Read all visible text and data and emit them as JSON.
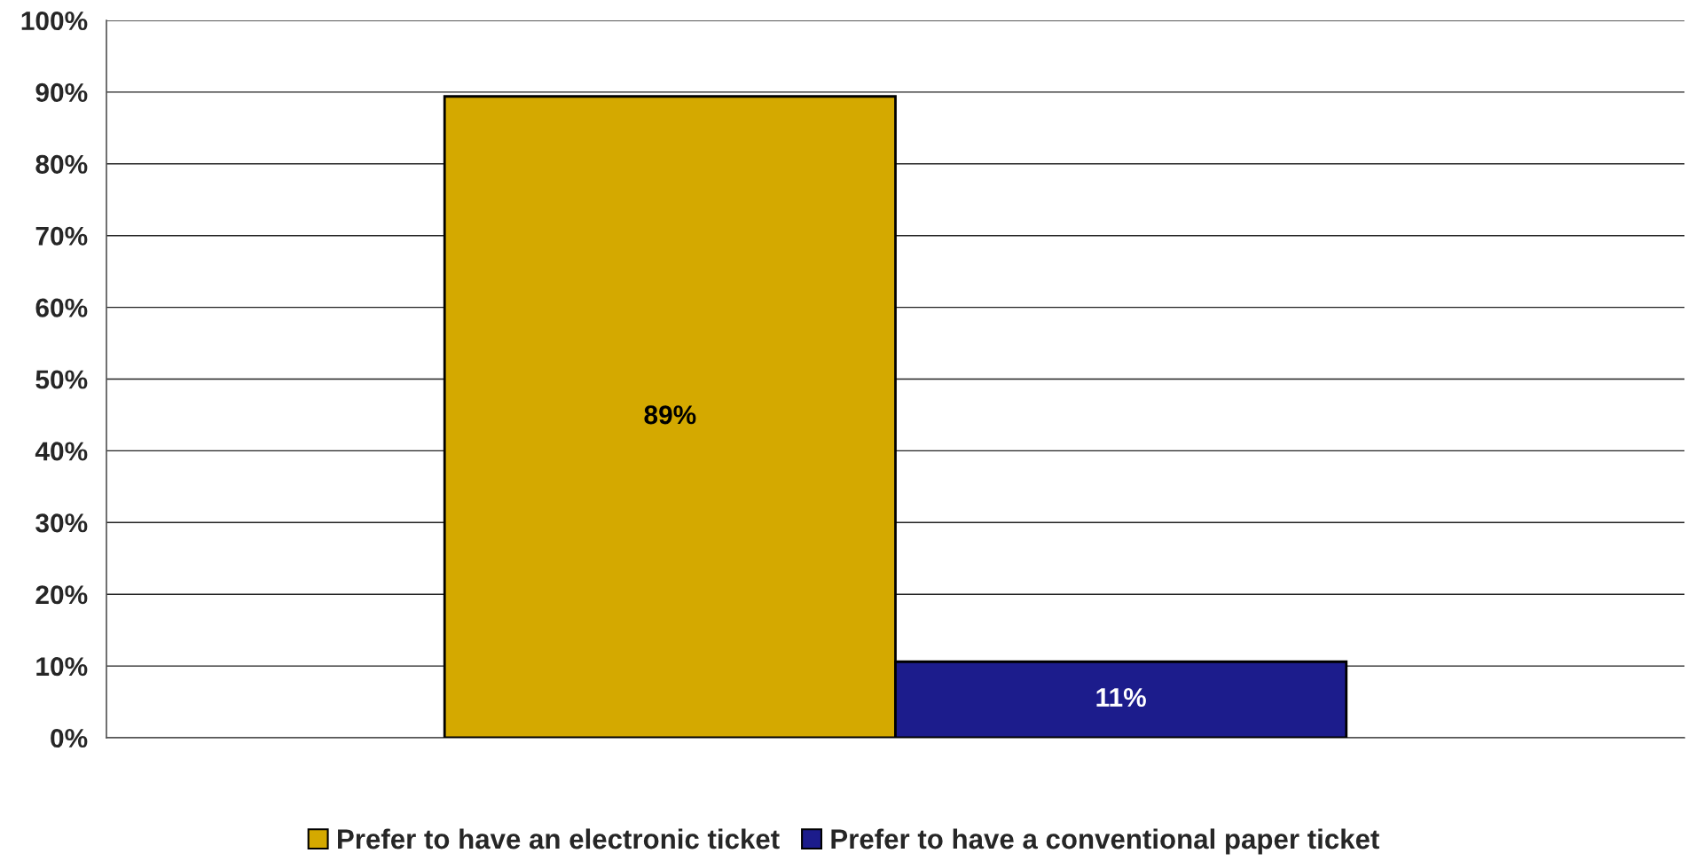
{
  "chart_data": {
    "type": "bar",
    "categories": [
      null
    ],
    "series": [
      {
        "name": "Prefer to have an electronic ticket",
        "color": "#d4a900",
        "values": [
          89.4
        ],
        "value_labels": [
          "89%"
        ]
      },
      {
        "name": "Prefer to have a conventional paper ticket",
        "color": "#1c1c8c",
        "values": [
          10.6
        ],
        "value_labels": [
          "11%"
        ]
      }
    ],
    "ylim": [
      0,
      100
    ],
    "yticks": [
      {
        "value": 0,
        "label": "0%"
      },
      {
        "value": 10,
        "label": "10%"
      },
      {
        "value": 20,
        "label": "20%"
      },
      {
        "value": 30,
        "label": "30%"
      },
      {
        "value": 40,
        "label": "40%"
      },
      {
        "value": 50,
        "label": "50%"
      },
      {
        "value": 60,
        "label": "60%"
      },
      {
        "value": 70,
        "label": "70%"
      },
      {
        "value": 80,
        "label": "80%"
      },
      {
        "value": 90,
        "label": "90%"
      },
      {
        "value": 100,
        "label": "100%"
      }
    ],
    "grid": "y",
    "legend": "bottom"
  }
}
